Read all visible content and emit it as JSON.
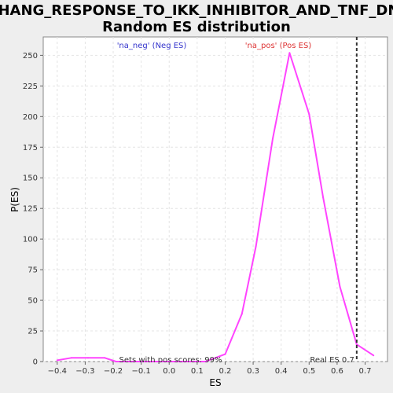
{
  "chart_data": {
    "type": "line",
    "title_line1": "ZHANG_RESPONSE_TO_IKK_INHIBITOR_AND_TNF_DN:",
    "title_line2": "Random ES distribution",
    "xlabel": "ES",
    "ylabel": "P(ES)",
    "xlim": [
      -0.45,
      0.78
    ],
    "ylim": [
      0,
      265
    ],
    "xticks": [
      -0.4,
      -0.3,
      -0.2,
      -0.1,
      0.0,
      0.1,
      0.2,
      0.3,
      0.4,
      0.5,
      0.6,
      0.7
    ],
    "xtick_labels": [
      "−0.4",
      "−0.3",
      "−0.2",
      "−0.1",
      "0.0",
      "0.1",
      "0.2",
      "0.3",
      "0.4",
      "0.5",
      "0.6",
      "0.7"
    ],
    "yticks": [
      0,
      25,
      50,
      75,
      100,
      125,
      150,
      175,
      200,
      225,
      250
    ],
    "ytick_labels": [
      "0",
      "25",
      "50",
      "75",
      "100",
      "125",
      "150",
      "175",
      "200",
      "225",
      "250"
    ],
    "grid": true,
    "series": [
      {
        "color": "#ff44ff",
        "x": [
          -0.4,
          -0.35,
          -0.29,
          -0.23,
          -0.19,
          -0.13,
          -0.07,
          -0.01,
          0.07,
          0.13,
          0.2,
          0.26,
          0.31,
          0.37,
          0.43,
          0.5,
          0.55,
          0.61,
          0.67,
          0.73
        ],
        "y": [
          1,
          3,
          3,
          3,
          0,
          0,
          0,
          0,
          0,
          0,
          6,
          39,
          94,
          182,
          252,
          202,
          134,
          61,
          14,
          5
        ]
      }
    ],
    "legend": {
      "neg_label": "'na_neg' (Neg ES)",
      "pos_label": "'na_pos' (Pos ES)",
      "neg_color": "#3333cc",
      "pos_color": "#dd3333",
      "placement": "top"
    },
    "real_es": {
      "value": 0.67,
      "label": "Real ES 0.7",
      "color": "#333333"
    },
    "pos_scores_annotation": "Sets with pos scores: 99%"
  }
}
